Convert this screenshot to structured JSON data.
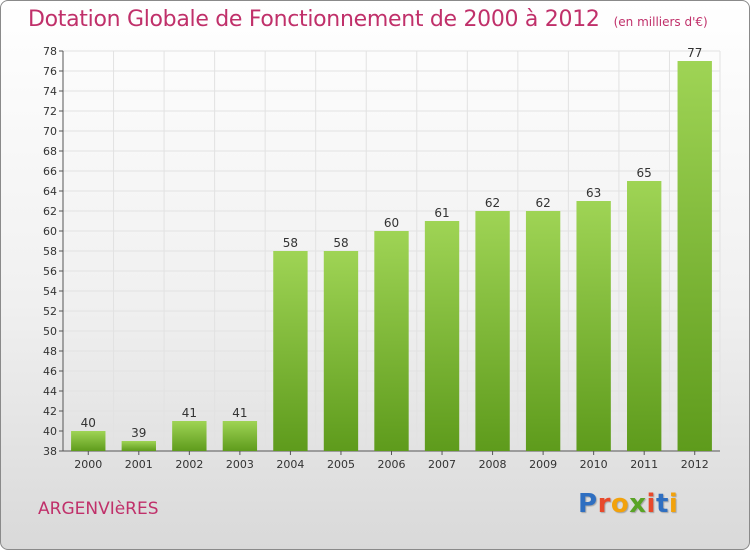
{
  "page": {
    "title": "Dotation Globale de Fonctionnement de 2000 à 2012",
    "unit_note": "(en milliers d'€)",
    "commune": "ARGENVIèRES",
    "logo_text": "Proxiti",
    "colors": {
      "title": "#c0306a",
      "bar_top": "#9fd455",
      "bar_bottom": "#5e9b1c",
      "logo_letters": [
        "#2f6fc1",
        "#e8492b",
        "#f2a20c",
        "#5aa426",
        "#e8492b",
        "#2f6fc1",
        "#f2a20c"
      ]
    }
  },
  "chart_data": {
    "type": "bar",
    "title": "Dotation Globale de Fonctionnement de 2000 à 2012",
    "subtitle": "(en milliers d'€)",
    "xlabel": "",
    "ylabel": "",
    "categories": [
      "2000",
      "2001",
      "2002",
      "2003",
      "2004",
      "2005",
      "2006",
      "2007",
      "2008",
      "2009",
      "2010",
      "2011",
      "2012"
    ],
    "values": [
      40,
      39,
      41,
      41,
      58,
      58,
      60,
      61,
      62,
      62,
      63,
      65,
      77
    ],
    "ylim": [
      38,
      78
    ],
    "yticks": [
      38,
      40,
      42,
      44,
      46,
      48,
      50,
      52,
      54,
      56,
      58,
      60,
      62,
      64,
      66,
      68,
      70,
      72,
      74,
      76,
      78
    ],
    "grid": true,
    "legend": "none",
    "data_labels": true
  }
}
